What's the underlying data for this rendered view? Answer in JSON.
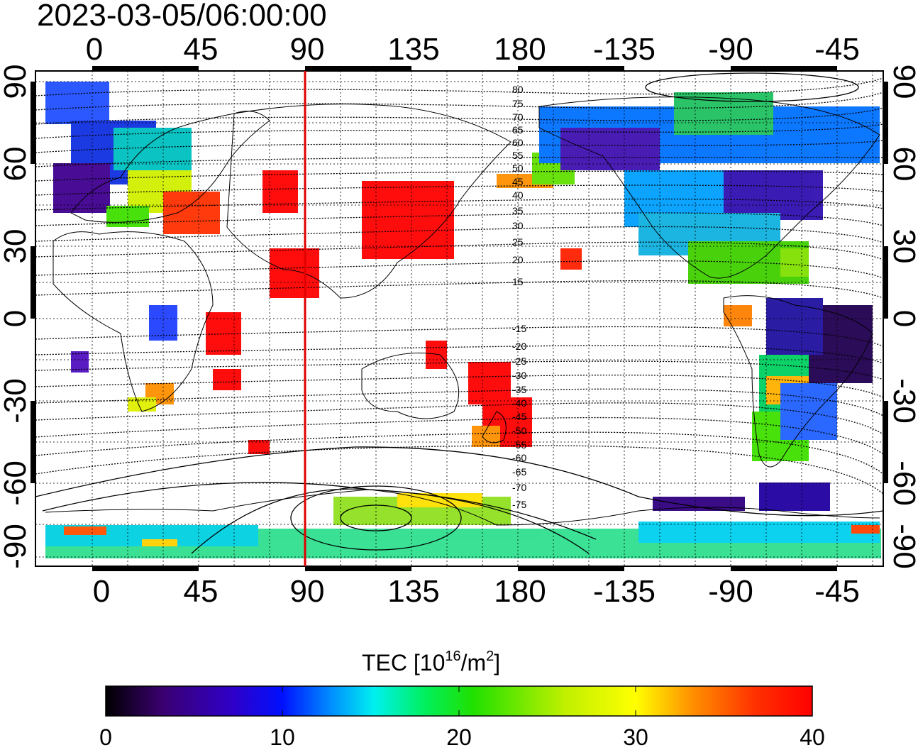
{
  "title": "2023-03-05/06:00:00",
  "colorbar": {
    "label_prefix": "TEC  [10",
    "label_exp1": "16",
    "label_mid": "/m",
    "label_exp2": "2",
    "label_suffix": "]",
    "ticks": [
      "0",
      "10",
      "20",
      "30",
      "40"
    ],
    "range": [
      0,
      40
    ],
    "colors": [
      "#000000",
      "#3a0070",
      "#2f00c8",
      "#0010ff",
      "#0090ff",
      "#00f0f0",
      "#00f060",
      "#20e000",
      "#c0f000",
      "#ffff00",
      "#ff9000",
      "#ff3000",
      "#ff0000"
    ]
  },
  "lon_labels": [
    "0",
    "45",
    "90",
    "135",
    "180",
    "-135",
    "-90",
    "-45"
  ],
  "lat_labels": [
    "90",
    "60",
    "30",
    "0",
    "-30",
    "-60",
    "-90"
  ],
  "contour_labels_north": [
    "80",
    "75",
    "70",
    "65",
    "60",
    "55",
    "50",
    "45",
    "40",
    "35",
    "30",
    "25",
    "20",
    "15"
  ],
  "contour_labels_south": [
    "-15",
    "-20",
    "-25",
    "-30",
    "-35",
    "-40",
    "-45",
    "-50",
    "-55",
    "-60",
    "-65",
    "-70",
    "-75"
  ],
  "marker": {
    "longitude": 90,
    "color": "#e00000"
  }
}
